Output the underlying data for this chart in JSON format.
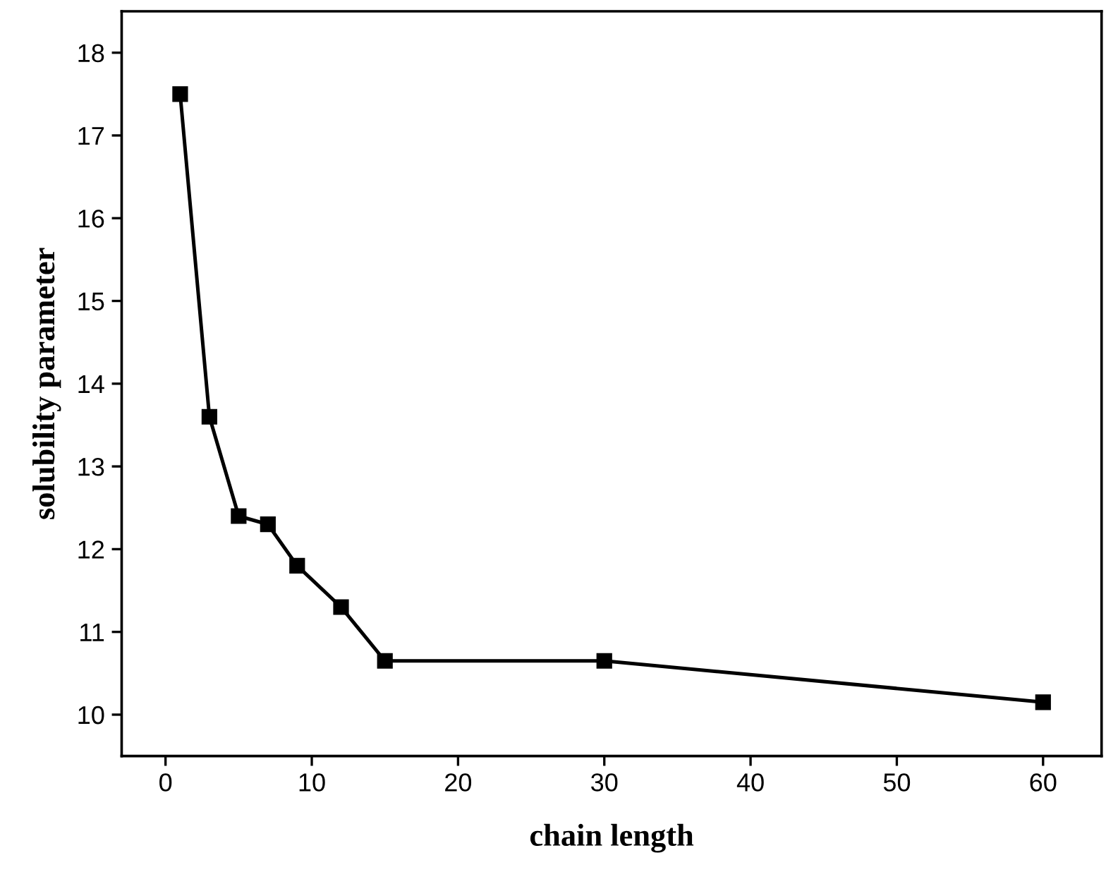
{
  "chart_data": {
    "type": "line",
    "xlabel": "chain length",
    "ylabel": "solubility parameter",
    "x": [
      1,
      3,
      5,
      7,
      9,
      12,
      15,
      30,
      60
    ],
    "series": [
      {
        "color": "#000000",
        "values": [
          17.5,
          13.6,
          12.4,
          12.3,
          11.8,
          11.3,
          10.65,
          10.65,
          10.15
        ]
      }
    ],
    "xlim": [
      -3,
      64
    ],
    "ylim": [
      9.5,
      18.5
    ],
    "xticks": [
      0,
      10,
      20,
      30,
      40,
      50,
      60
    ],
    "yticks": [
      10,
      11,
      12,
      13,
      14,
      15,
      16,
      17,
      18
    ],
    "marker": "square",
    "line_style": "solid",
    "grid": false,
    "legend": false
  }
}
